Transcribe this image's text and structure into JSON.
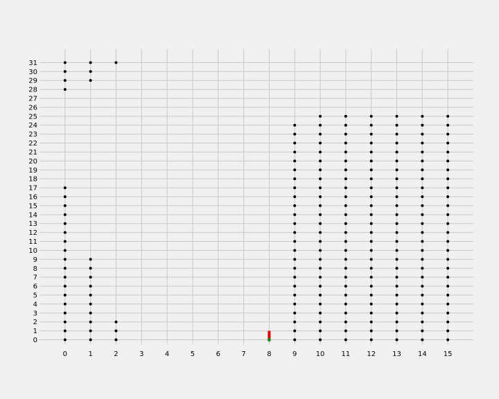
{
  "chart_data": {
    "type": "scatter",
    "title": "",
    "xlabel": "",
    "ylabel": "",
    "xlim": [
      -1,
      16
    ],
    "ylim": [
      -0.5,
      32.5
    ],
    "grid": true,
    "x_ticks": [
      "0",
      "1",
      "2",
      "3",
      "4",
      "5",
      "6",
      "7",
      "8",
      "9",
      "10",
      "11",
      "12",
      "13",
      "14",
      "15"
    ],
    "y_ticks": [
      "0",
      "1",
      "2",
      "3",
      "4",
      "5",
      "6",
      "7",
      "8",
      "9",
      "10",
      "11",
      "12",
      "13",
      "14",
      "15",
      "16",
      "17",
      "18",
      "19",
      "20",
      "21",
      "22",
      "23",
      "24",
      "25",
      "26",
      "27",
      "28",
      "29",
      "30",
      "31"
    ],
    "colors": {
      "background": "#f0f0f0",
      "grid": "#c8c8c8",
      "points": "#000000",
      "marker_bar": "#dd0000",
      "marker_base": "#228822"
    },
    "points": [
      {
        "x": 0,
        "y": [
          0,
          1,
          2,
          3,
          4,
          5,
          6,
          7,
          8,
          9,
          10,
          11,
          12,
          13,
          14,
          15,
          16,
          17,
          28,
          29,
          30,
          31
        ]
      },
      {
        "x": 1,
        "y": [
          0,
          1,
          2,
          3,
          4,
          5,
          6,
          7,
          8,
          9,
          29,
          30,
          31
        ]
      },
      {
        "x": 2,
        "y": [
          0,
          1,
          2,
          31
        ]
      },
      {
        "x": 9,
        "y": [
          0,
          1,
          2,
          3,
          4,
          5,
          6,
          7,
          8,
          9,
          10,
          11,
          12,
          13,
          14,
          15,
          16,
          17,
          18,
          19,
          20,
          21,
          22,
          23,
          24
        ]
      },
      {
        "x": 10,
        "y": [
          0,
          1,
          2,
          3,
          4,
          5,
          6,
          7,
          8,
          9,
          10,
          11,
          12,
          13,
          14,
          15,
          16,
          17,
          18,
          19,
          20,
          21,
          22,
          23,
          24,
          25
        ]
      },
      {
        "x": 11,
        "y": [
          0,
          1,
          2,
          3,
          4,
          5,
          6,
          7,
          8,
          9,
          10,
          11,
          12,
          13,
          14,
          15,
          16,
          17,
          18,
          19,
          20,
          21,
          22,
          23,
          24,
          25
        ]
      },
      {
        "x": 12,
        "y": [
          0,
          1,
          2,
          3,
          4,
          5,
          6,
          7,
          8,
          9,
          10,
          11,
          12,
          13,
          14,
          15,
          16,
          17,
          18,
          19,
          20,
          21,
          22,
          23,
          24,
          25
        ]
      },
      {
        "x": 13,
        "y": [
          0,
          1,
          2,
          3,
          4,
          5,
          6,
          7,
          8,
          9,
          10,
          11,
          12,
          13,
          14,
          15,
          16,
          17,
          18,
          19,
          20,
          21,
          22,
          23,
          24,
          25
        ]
      },
      {
        "x": 14,
        "y": [
          0,
          1,
          2,
          3,
          4,
          5,
          6,
          7,
          8,
          9,
          10,
          11,
          12,
          13,
          14,
          15,
          16,
          17,
          18,
          19,
          20,
          21,
          22,
          23,
          24,
          25
        ]
      },
      {
        "x": 15,
        "y": [
          0,
          1,
          2,
          3,
          4,
          5,
          6,
          7,
          8,
          9,
          10,
          11,
          12,
          13,
          14,
          15,
          16,
          17,
          18,
          19,
          20,
          21,
          22,
          23,
          24,
          25
        ]
      }
    ],
    "marker": {
      "x": 8,
      "y_from": 0,
      "y_to": 1
    }
  }
}
